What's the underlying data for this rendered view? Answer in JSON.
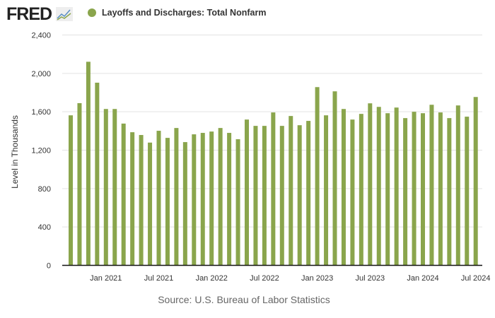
{
  "brand": {
    "logo_text": "FRED"
  },
  "legend": {
    "label": "Layoffs and Discharges: Total Nonfarm"
  },
  "colors": {
    "bar": "#8aa54c",
    "grid": "#e3e3e3"
  },
  "source": "Source: U.S. Bureau of Labor Statistics",
  "chart_data": {
    "type": "bar",
    "title": "Layoffs and Discharges: Total Nonfarm",
    "xlabel": "",
    "ylabel": "Level in Thousands",
    "ylim": [
      0,
      2400
    ],
    "yticks": [
      0,
      400,
      800,
      1200,
      1600,
      2000,
      2400
    ],
    "ytick_labels": [
      "0",
      "400",
      "800",
      "1,200",
      "1,600",
      "2,000",
      "2,400"
    ],
    "xticks": [
      {
        "index": 4,
        "label": "Jan 2021"
      },
      {
        "index": 10,
        "label": "Jul 2021"
      },
      {
        "index": 16,
        "label": "Jan 2022"
      },
      {
        "index": 22,
        "label": "Jul 2022"
      },
      {
        "index": 28,
        "label": "Jan 2023"
      },
      {
        "index": 34,
        "label": "Jul 2023"
      },
      {
        "index": 40,
        "label": "Jan 2024"
      },
      {
        "index": 46,
        "label": "Jul 2024"
      }
    ],
    "start": "2020-09",
    "end": "2024-07",
    "grid": true,
    "legend_position": "top-left",
    "values": [
      1563,
      1690,
      2121,
      1903,
      1629,
      1629,
      1477,
      1387,
      1358,
      1279,
      1402,
      1328,
      1431,
      1284,
      1365,
      1380,
      1394,
      1431,
      1380,
      1314,
      1519,
      1453,
      1453,
      1593,
      1453,
      1556,
      1460,
      1505,
      1857,
      1563,
      1813,
      1629,
      1519,
      1578,
      1688,
      1651,
      1585,
      1644,
      1534,
      1600,
      1585,
      1673,
      1593,
      1534,
      1666,
      1549,
      1754
    ]
  }
}
